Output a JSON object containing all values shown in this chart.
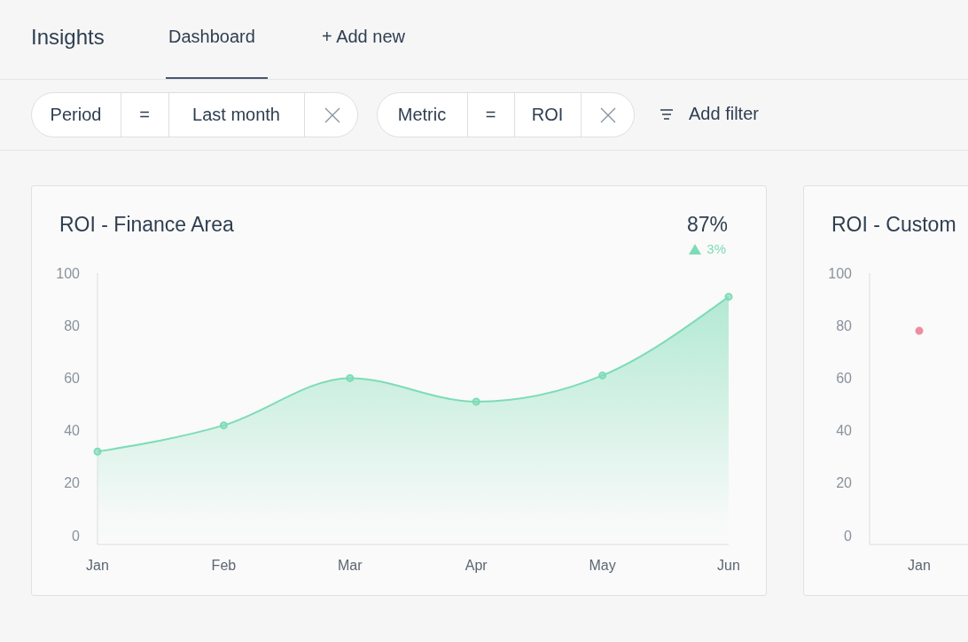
{
  "chart_data": [
    {
      "type": "other",
      "annotations": [
        "Insights",
        "Dashboard",
        "+ Add new",
        "Period",
        "=",
        "Last month",
        "Metric",
        "=",
        "ROI",
        "Add filter"
      ]
    },
    {
      "type": "area",
      "title": "ROI - Finance Area",
      "annotations": [
        "87%",
        "3%"
      ],
      "categories": [
        "Jan",
        "Feb",
        "Mar",
        "Apr",
        "May",
        "Jun"
      ],
      "values": [
        32,
        42,
        60,
        51,
        61,
        91
      ],
      "color": "#7ddcb7",
      "ylim": [
        -3.4,
        100
      ],
      "yticks": [
        0,
        20,
        40,
        60,
        80,
        100
      ],
      "marker": "circle",
      "grid": false
    },
    {
      "type": "line",
      "title": "ROI - Custom",
      "categories": [
        "Jan"
      ],
      "values": [
        78
      ],
      "color": "#f08ba0",
      "ylim": [
        -3.4,
        100
      ],
      "yticks": [
        0,
        20,
        40,
        60,
        80,
        100
      ],
      "marker": "circle",
      "grid": false
    }
  ]
}
